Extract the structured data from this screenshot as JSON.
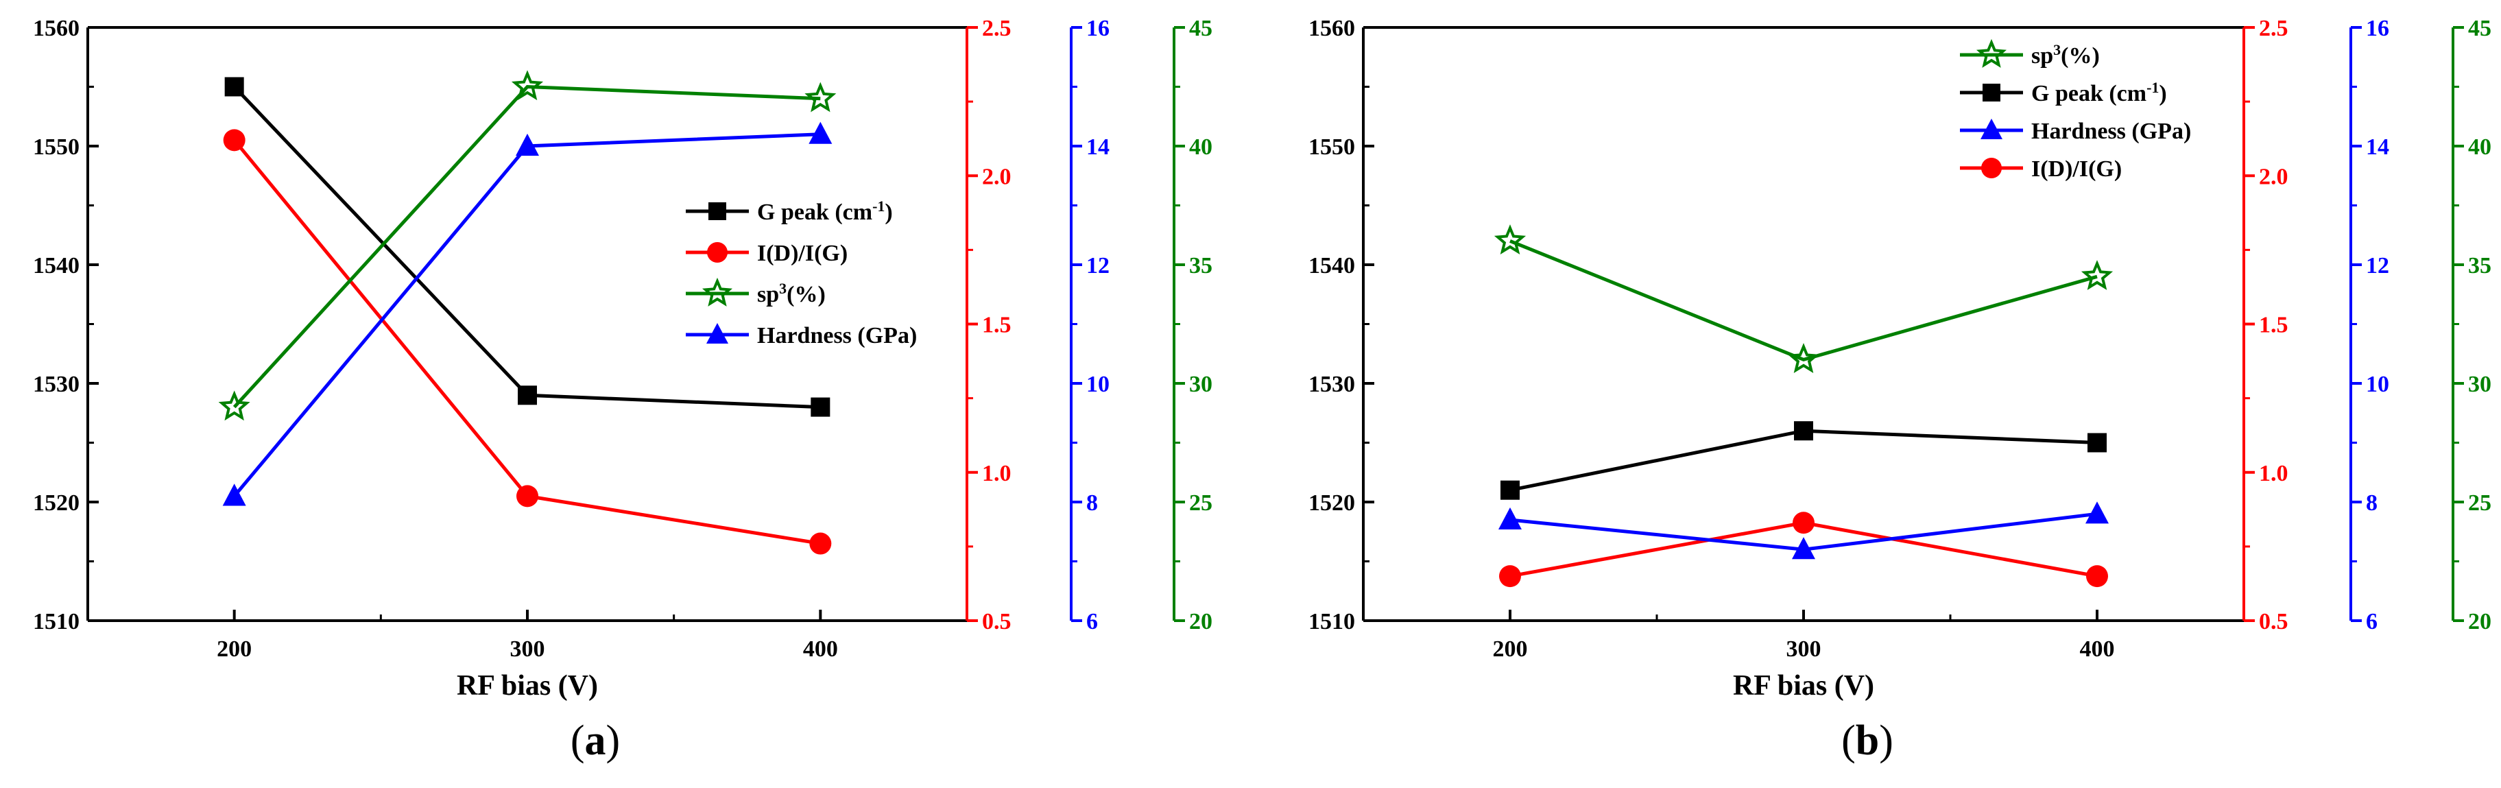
{
  "panels": [
    {
      "label_open": "(",
      "label_letter": "a",
      "label_close": ")"
    },
    {
      "label_open": "(",
      "label_letter": "b",
      "label_close": ")"
    }
  ],
  "axes": {
    "xlabel": "RF bias (V)",
    "x_ticks": [
      "200",
      "300",
      "400"
    ],
    "x_values": [
      200,
      300,
      400
    ],
    "xlim": [
      150,
      450
    ],
    "left": {
      "ylim": [
        1510,
        1560
      ],
      "ticks": [
        "1510",
        "1520",
        "1530",
        "1540",
        "1550",
        "1560"
      ],
      "color": "#000000"
    },
    "red": {
      "ylim": [
        0.5,
        2.5
      ],
      "ticks": [
        "0.5",
        "1.0",
        "1.5",
        "2.0",
        "2.5"
      ],
      "color": "#ff0000"
    },
    "blue": {
      "ylim": [
        6,
        16
      ],
      "ticks": [
        "6",
        "8",
        "10",
        "12",
        "14",
        "16"
      ],
      "color": "#0000ff"
    },
    "green": {
      "ylim": [
        20,
        45
      ],
      "ticks": [
        "20",
        "25",
        "30",
        "35",
        "40",
        "45"
      ],
      "color": "#008000"
    }
  },
  "legend": {
    "g_peak": {
      "text": "G peak (cm",
      "sup": "-1",
      "after": ")"
    },
    "idig": {
      "text": "I(D)/I(G)"
    },
    "sp3": {
      "text": "sp",
      "sup": "3",
      "after": "(%)"
    },
    "hardness": {
      "text": "Hardness (GPa)"
    }
  },
  "chart_data": [
    {
      "type": "line",
      "panel": "a",
      "x": [
        200,
        300,
        400
      ],
      "legend_order": [
        "g_peak",
        "idig",
        "sp3",
        "hardness"
      ],
      "legend_placement": "right-middle",
      "series": [
        {
          "key": "g_peak",
          "axis": "left",
          "marker": "square",
          "color": "#000000",
          "values": [
            1555,
            1529,
            1528
          ]
        },
        {
          "key": "idig",
          "axis": "red",
          "marker": "circle",
          "color": "#ff0000",
          "values": [
            2.12,
            0.92,
            0.76
          ]
        },
        {
          "key": "sp3",
          "axis": "green",
          "marker": "star",
          "color": "#008000",
          "values": [
            29,
            42.5,
            42
          ]
        },
        {
          "key": "hardness",
          "axis": "blue",
          "marker": "triangle",
          "color": "#0000ff",
          "values": [
            8.1,
            14.0,
            14.2
          ]
        }
      ]
    },
    {
      "type": "line",
      "panel": "b",
      "x": [
        200,
        300,
        400
      ],
      "legend_order": [
        "sp3",
        "g_peak",
        "hardness",
        "idig"
      ],
      "legend_placement": "top-right",
      "series": [
        {
          "key": "g_peak",
          "axis": "left",
          "marker": "square",
          "color": "#000000",
          "values": [
            1521,
            1526,
            1525
          ]
        },
        {
          "key": "idig",
          "axis": "red",
          "marker": "circle",
          "color": "#ff0000",
          "values": [
            0.65,
            0.83,
            0.65
          ]
        },
        {
          "key": "sp3",
          "axis": "green",
          "marker": "star",
          "color": "#008000",
          "values": [
            36,
            31,
            34.5
          ]
        },
        {
          "key": "hardness",
          "axis": "blue",
          "marker": "triangle",
          "color": "#0000ff",
          "values": [
            7.7,
            7.2,
            7.8
          ]
        }
      ]
    }
  ]
}
